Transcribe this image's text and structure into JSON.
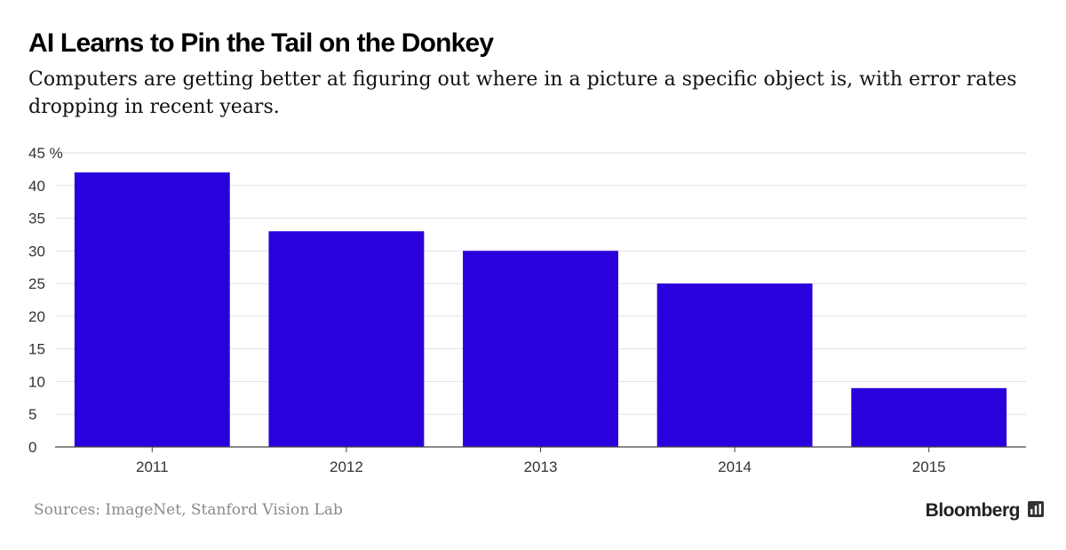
{
  "header": {
    "title": "AI Learns to Pin the Tail on the Donkey",
    "subtitle": "Computers are getting better at figuring out where in a picture a specific object is, with error rates dropping in recent years."
  },
  "chart_data": {
    "type": "bar",
    "categories": [
      "2011",
      "2012",
      "2013",
      "2014",
      "2015"
    ],
    "values": [
      42,
      33,
      30,
      25,
      9
    ],
    "ylim": [
      0,
      45
    ],
    "yticks": [
      0,
      5,
      10,
      15,
      20,
      25,
      30,
      35,
      40,
      45
    ],
    "ytick_labels": [
      "0",
      "5",
      "10",
      "15",
      "20",
      "25",
      "30",
      "35",
      "40",
      "45 %"
    ],
    "grid": true,
    "bar_color": "#2a00dc",
    "xlabel": "",
    "ylabel": ""
  },
  "footer": {
    "source": "Sources: ImageNet, Stanford Vision Lab",
    "brand": "Bloomberg",
    "brand_icon": "bloomberg-terminal-icon"
  }
}
